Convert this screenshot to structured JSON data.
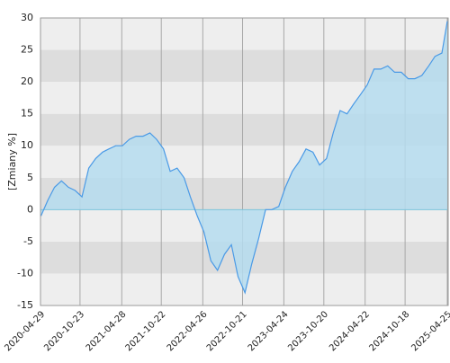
{
  "chart_data": {
    "type": "area",
    "y_label": "[Zmiany %]",
    "x": [
      "2020-05-01",
      "2020-06-01",
      "2020-07-01",
      "2020-08-01",
      "2020-09-01",
      "2020-10-01",
      "2020-11-01",
      "2020-12-01",
      "2021-01-01",
      "2021-02-01",
      "2021-03-01",
      "2021-04-01",
      "2021-05-01",
      "2021-06-01",
      "2021-07-01",
      "2021-08-01",
      "2021-09-01",
      "2021-10-01",
      "2021-11-01",
      "2021-12-01",
      "2022-01-01",
      "2022-02-01",
      "2022-03-01",
      "2022-04-01",
      "2022-05-01",
      "2022-06-01",
      "2022-07-01",
      "2022-08-01",
      "2022-09-01",
      "2022-10-01",
      "2022-11-01",
      "2022-12-01",
      "2023-01-01",
      "2023-02-01",
      "2023-03-01",
      "2023-04-01",
      "2023-05-01",
      "2023-06-01",
      "2023-07-01",
      "2023-08-01",
      "2023-09-01",
      "2023-10-01",
      "2023-11-01",
      "2023-12-01",
      "2024-01-01",
      "2024-02-01",
      "2024-03-01",
      "2024-04-01",
      "2024-05-01",
      "2024-06-01",
      "2024-07-01",
      "2024-08-01",
      "2024-09-01",
      "2024-10-01",
      "2024-11-01",
      "2024-12-01",
      "2025-01-01",
      "2025-02-01",
      "2025-03-01",
      "2025-04-01",
      "2025-04-25"
    ],
    "values": [
      -1,
      1.5,
      3.5,
      4.5,
      3.5,
      3,
      2,
      6.5,
      8,
      9,
      9.5,
      10,
      10,
      11,
      11.5,
      11.5,
      12,
      11,
      9.5,
      6,
      6.5,
      5,
      2,
      -1,
      -3.5,
      -8,
      -9.5,
      -7,
      -5.5,
      -10.5,
      -13,
      -8.5,
      -4.5,
      0,
      0,
      0.5,
      3.5,
      6,
      7.5,
      9.5,
      9,
      7,
      8,
      12,
      15.5,
      15,
      16.5,
      18,
      19.5,
      22,
      22,
      22.5,
      21.5,
      21.5,
      20.5,
      20.5,
      21,
      22.5,
      24,
      24.5,
      29.5
    ],
    "color": "#4a9ae6",
    "area_color": "#b5dcef",
    "xlim": [
      "2020-04-29",
      "2025-04-25"
    ],
    "xticks": [
      "2020-04-29",
      "2020-10-23",
      "2021-04-28",
      "2021-10-22",
      "2022-04-26",
      "2022-10-21",
      "2023-04-24",
      "2023-10-20",
      "2024-04-22",
      "2024-10-18",
      "2025-04-25"
    ],
    "ylim": [
      -15,
      30
    ],
    "yticks": [
      -15,
      -10,
      -5,
      0,
      5,
      10,
      15,
      20,
      25,
      30
    ],
    "band_colors": [
      "#eeeeee",
      "#dddddd"
    ],
    "grid": true
  }
}
